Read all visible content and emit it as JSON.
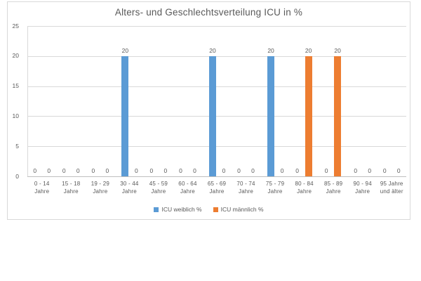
{
  "chart_data": {
    "type": "bar",
    "title": "Alters- und Geschlechtsverteilung ICU in %",
    "categories": [
      "0 - 14 Jahre",
      "15 - 18 Jahre",
      "19 - 29 Jahre",
      "30 - 44 Jahre",
      "45 - 59 Jahre",
      "60 - 64 Jahre",
      "65 - 69 Jahre",
      "70 - 74 Jahre",
      "75 - 79 Jahre",
      "80 - 84 Jahre",
      "85 - 89 Jahre",
      "90 - 94 Jahre",
      "95 Jahre und älter"
    ],
    "category_lines": [
      [
        "0 - 14",
        "Jahre"
      ],
      [
        "15 - 18",
        "Jahre"
      ],
      [
        "19 - 29",
        "Jahre"
      ],
      [
        "30 - 44",
        "Jahre"
      ],
      [
        "45 - 59",
        "Jahre"
      ],
      [
        "60 - 64",
        "Jahre"
      ],
      [
        "65 - 69",
        "Jahre"
      ],
      [
        "70 - 74",
        "Jahre"
      ],
      [
        "75 - 79",
        "Jahre"
      ],
      [
        "80 - 84",
        "Jahre"
      ],
      [
        "85 - 89",
        "Jahre"
      ],
      [
        "90 - 94",
        "Jahre"
      ],
      [
        "95 Jahre",
        "und älter"
      ]
    ],
    "series": [
      {
        "name": "ICU weiblich %",
        "color": "#5B9BD5",
        "values": [
          0,
          0,
          0,
          20,
          0,
          0,
          20,
          0,
          20,
          0,
          0,
          0,
          0
        ]
      },
      {
        "name": "ICU männlich %",
        "color": "#ED7D31",
        "values": [
          0,
          0,
          0,
          0,
          0,
          0,
          0,
          0,
          0,
          20,
          20,
          0,
          0
        ]
      }
    ],
    "ylim": [
      0,
      25
    ],
    "yticks": [
      0,
      5,
      10,
      15,
      20,
      25
    ],
    "grid": true,
    "data_labels": true,
    "legend_position": "bottom",
    "colors": {
      "text": "#595959",
      "gridline": "#D9D9D9",
      "axis_line": "#BFBFBF",
      "frame_border": "#D9D9D9",
      "background": "#FFFFFF"
    }
  }
}
